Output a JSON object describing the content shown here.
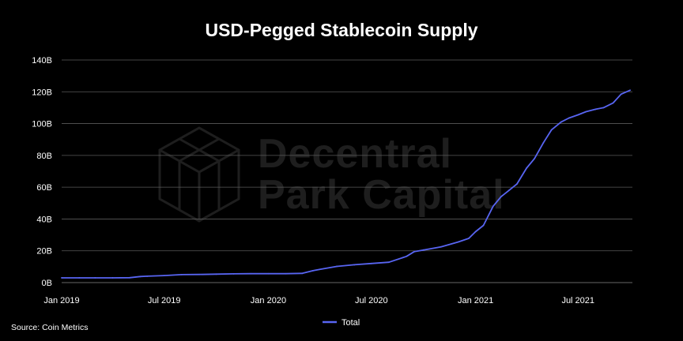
{
  "colors": {
    "background": "#000000",
    "grid": "#5a5a5a",
    "text": "#ffffff",
    "series": "#5865f2",
    "watermark": "#1e1e1e"
  },
  "watermark": {
    "line1": "Decentral",
    "line2": "Park Capital",
    "icon": "cube-logo-icon"
  },
  "source": "Source: Coin Metrics",
  "chart_data": {
    "type": "line",
    "title": "USD-Pegged Stablecoin Supply",
    "xlabel": "",
    "ylabel": "",
    "grid": true,
    "legend_position": "bottom-center",
    "x_axis": {
      "type": "date",
      "range": [
        "2019-01-01",
        "2021-10-05"
      ],
      "ticks": [
        {
          "date": "2019-01-01",
          "label": "Jan 2019"
        },
        {
          "date": "2019-07-01",
          "label": "Jul 2019"
        },
        {
          "date": "2020-01-01",
          "label": "Jan 2020"
        },
        {
          "date": "2020-07-01",
          "label": "Jul 2020"
        },
        {
          "date": "2021-01-01",
          "label": "Jan 2021"
        },
        {
          "date": "2021-07-01",
          "label": "Jul 2021"
        }
      ]
    },
    "y_axis": {
      "range": [
        0,
        140
      ],
      "ticks": [
        {
          "value": 0,
          "label": "0B"
        },
        {
          "value": 20,
          "label": "20B"
        },
        {
          "value": 40,
          "label": "40B"
        },
        {
          "value": 60,
          "label": "60B"
        },
        {
          "value": 80,
          "label": "80B"
        },
        {
          "value": 100,
          "label": "100B"
        },
        {
          "value": 120,
          "label": "120B"
        },
        {
          "value": 140,
          "label": "140B"
        }
      ]
    },
    "series": [
      {
        "name": "Total",
        "color": "#5865f2",
        "x": [
          "2019-01-01",
          "2019-02-01",
          "2019-03-01",
          "2019-04-01",
          "2019-05-01",
          "2019-05-20",
          "2019-06-01",
          "2019-07-01",
          "2019-08-01",
          "2019-09-01",
          "2019-10-01",
          "2019-11-01",
          "2019-12-01",
          "2020-01-01",
          "2020-02-01",
          "2020-03-01",
          "2020-03-20",
          "2020-04-01",
          "2020-05-01",
          "2020-06-01",
          "2020-07-01",
          "2020-08-01",
          "2020-09-01",
          "2020-09-15",
          "2020-10-01",
          "2020-11-01",
          "2020-12-01",
          "2020-12-20",
          "2021-01-01",
          "2021-01-15",
          "2021-02-01",
          "2021-02-15",
          "2021-03-01",
          "2021-03-15",
          "2021-04-01",
          "2021-04-15",
          "2021-05-01",
          "2021-05-15",
          "2021-06-01",
          "2021-06-15",
          "2021-07-01",
          "2021-07-15",
          "2021-08-01",
          "2021-08-15",
          "2021-09-01",
          "2021-09-15",
          "2021-10-01"
        ],
        "values": [
          3,
          3,
          3,
          3,
          3.1,
          3.8,
          4,
          4.4,
          5,
          5.1,
          5.3,
          5.5,
          5.6,
          5.6,
          5.6,
          5.8,
          7.5,
          8.3,
          10.2,
          11.2,
          12,
          12.8,
          16.5,
          19.5,
          20.5,
          22.5,
          25.5,
          27.8,
          32,
          36,
          48,
          54,
          58,
          62,
          72,
          78,
          88,
          96,
          101,
          103.5,
          105.5,
          107.5,
          109,
          110,
          113,
          118.5,
          121
        ]
      }
    ]
  }
}
